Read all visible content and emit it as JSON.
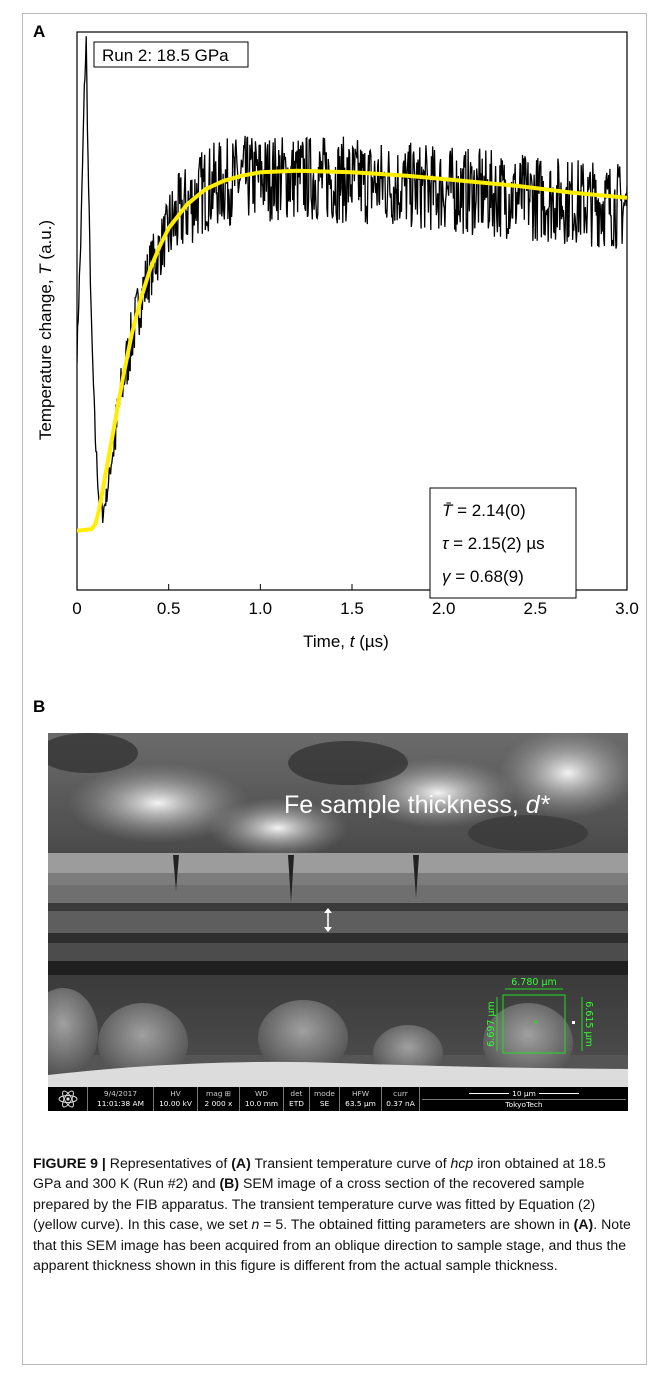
{
  "panel_a_label": "A",
  "panel_b_label": "B",
  "chart_data": {
    "type": "line",
    "title": "",
    "run_label": "Run 2: 18.5 GPa",
    "xlabel_prefix": "Time, ",
    "xlabel_var": "t",
    "xlabel_unit": " (µs)",
    "ylabel_prefix": "Temperature change, ",
    "ylabel_var": "T",
    "ylabel_unit": " (a.u.)",
    "xlim": [
      0,
      3.0
    ],
    "ylim": [
      -0.35,
      2.95
    ],
    "xticks": [
      "0",
      "0.5",
      "1.0",
      "1.5",
      "2.0",
      "2.5",
      "3.0"
    ],
    "y_tick_labels_shown": false,
    "grid": false,
    "series": [
      {
        "color": "#000000",
        "style": "noisy measured signal",
        "x": [
          0,
          0.02,
          0.04,
          0.05,
          0.06,
          0.08,
          0.1,
          0.12,
          0.14,
          0.16,
          0.2,
          0.25,
          0.3,
          0.35,
          0.4,
          0.5,
          0.6,
          0.7,
          0.8,
          0.9,
          1.0,
          1.2,
          1.4,
          1.6,
          1.8,
          2.0,
          2.2,
          2.4,
          2.6,
          2.8,
          3.0
        ],
        "y": [
          1.05,
          1.7,
          2.6,
          2.9,
          2.2,
          1.15,
          0.55,
          0.18,
          0.1,
          0.2,
          0.5,
          0.88,
          1.15,
          1.38,
          1.55,
          1.78,
          1.92,
          2.02,
          2.06,
          2.08,
          2.09,
          2.09,
          2.08,
          2.06,
          2.04,
          2.02,
          2.0,
          1.98,
          1.96,
          1.94,
          1.92
        ]
      },
      {
        "color": "#ffee00",
        "style": "fit curve",
        "x": [
          0,
          0.08,
          0.1,
          0.12,
          0.15,
          0.2,
          0.25,
          0.3,
          0.35,
          0.4,
          0.45,
          0.5,
          0.6,
          0.7,
          0.8,
          0.9,
          1.0,
          1.2,
          1.5,
          1.8,
          2.1,
          2.4,
          2.7,
          3.0
        ],
        "y": [
          0.0,
          0.01,
          0.04,
          0.12,
          0.3,
          0.6,
          0.9,
          1.17,
          1.38,
          1.55,
          1.68,
          1.79,
          1.93,
          2.02,
          2.07,
          2.1,
          2.12,
          2.13,
          2.12,
          2.1,
          2.07,
          2.04,
          2.0,
          1.97
        ]
      }
    ],
    "params": [
      {
        "sym": "T̄",
        "text": " = 2.14(0)"
      },
      {
        "sym": "τ",
        "text": " = 2.15(2) µs"
      },
      {
        "sym": "γ",
        "text": " = 0.68(9)"
      }
    ]
  },
  "sem": {
    "annotation_text": "Fe sample thickness, ",
    "annotation_var": "d*",
    "measure_h": "6.780 µm",
    "measure_v_left": "6.697 µm",
    "measure_v_right": "6.615 µm",
    "bar": {
      "date": "9/4/2017",
      "time": "11:01:38 AM",
      "hv_label": "HV",
      "hv": "10.00 kV",
      "mag_label": "mag ⊞",
      "mag": "2 000 x",
      "wd_label": "WD",
      "wd": "10.0 mm",
      "det_label": "det",
      "det": "ETD",
      "mode_label": "mode",
      "mode": "SE",
      "hfw_label": "HFW",
      "hfw": "63.5 µm",
      "curr_label": "curr",
      "curr": "0.37 nA",
      "scale": "10 µm",
      "org": "TokyoTech"
    }
  },
  "caption": {
    "figure_label": "FIGURE 9 |",
    "t1": " Representatives of ",
    "a1": "(A)",
    "t2": " Transient temperature curve of ",
    "hcp": "hcp",
    "t3": " iron obtained at 18.5 GPa and 300 K (Run #2) and ",
    "b1": "(B)",
    "t4": " SEM image of a cross section of the recovered sample prepared by the FIB apparatus. The transient temperature curve was fitted by Equation (2) (yellow curve). In this case, we set ",
    "n": "n",
    "t5": " = 5. The obtained fitting parameters are shown in ",
    "a2": "(A)",
    "t6": ". Note that this SEM image has been acquired from an oblique direction to sample stage, and thus the apparent thickness shown in this figure is different from the actual sample thickness."
  }
}
